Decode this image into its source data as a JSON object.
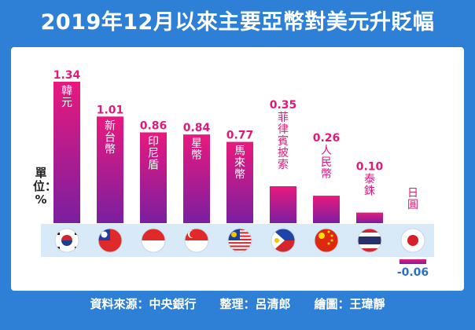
{
  "title": "2019年12月以來主要亞幣對美元升貶幅",
  "unit_label": "單位：%",
  "source_line": "資料來源：中央銀行　　整理：呂清郎　　繪圖：王瑋靜",
  "colors": {
    "frame": "#2e7fd6",
    "bar_top": "#e8197e",
    "bar_bottom": "#7a1fa0",
    "label_pink": "#e0197a",
    "label_blue": "#2a6fcc"
  },
  "chart_data": {
    "type": "bar",
    "title": "2019年12月以來主要亞幣對美元升貶幅",
    "ylabel": "單位：%",
    "ylim": [
      -0.06,
      1.34
    ],
    "grid": false,
    "categories": [
      "韓元",
      "新台幣",
      "印尼盾",
      "星幣",
      "馬來幣",
      "菲律賓披索",
      "人民幣",
      "泰銖",
      "日圓"
    ],
    "values": [
      1.34,
      1.01,
      0.86,
      0.84,
      0.77,
      0.35,
      0.26,
      0.1,
      -0.06
    ],
    "value_labels": [
      "1.34",
      "1.01",
      "0.86",
      "0.84",
      "0.77",
      "0.35",
      "0.26",
      "0.10",
      "-0.06"
    ],
    "flags": [
      "south-korea-flag",
      "taiwan-flag",
      "indonesia-flag",
      "singapore-flag",
      "malaysia-flag",
      "philippines-flag",
      "china-flag",
      "thailand-flag",
      "japan-flag"
    ]
  }
}
